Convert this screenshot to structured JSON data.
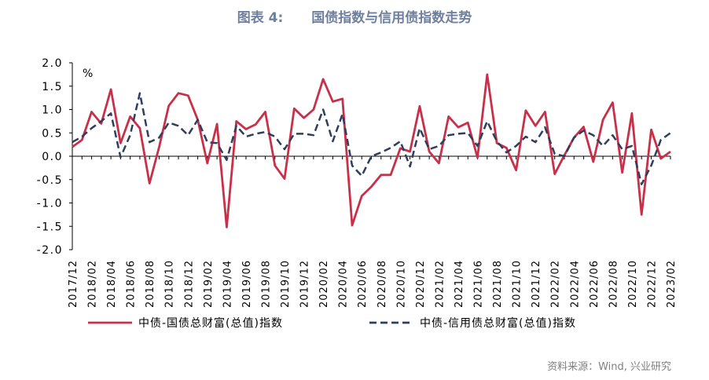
{
  "figure_label": "图表 4:",
  "title": "国债指数与信用债指数走势",
  "source": "资料来源：Wind, 兴业研究",
  "colors": {
    "series1": "#c8304a",
    "series2": "#2f3d5e",
    "axis": "#000000"
  },
  "chart_data": {
    "type": "line",
    "ylabel": "%",
    "ylim": [
      -2.0,
      2.0
    ],
    "yticks": [
      "2.0",
      "1.5",
      "1.0",
      "0.5",
      "0.0",
      "-0.5",
      "-1.0",
      "-1.5",
      "-2.0"
    ],
    "grid": false,
    "legend": "bottom",
    "xtick_labels": [
      "2017/12",
      "2018/02",
      "2018/04",
      "2018/06",
      "2018/08",
      "2018/10",
      "2018/12",
      "2019/02",
      "2019/04",
      "2019/06",
      "2019/08",
      "2019/10",
      "2019/12",
      "2020/02",
      "2020/04",
      "2020/06",
      "2020/08",
      "2020/10",
      "2020/12",
      "2021/02",
      "2021/04",
      "2021/06",
      "2021/08",
      "2021/10",
      "2021/12",
      "2022/02",
      "2022/04",
      "2022/06",
      "2022/08",
      "2022/10",
      "2022/12",
      "2023/02"
    ],
    "x": [
      "2017/12",
      "2018/01",
      "2018/02",
      "2018/03",
      "2018/04",
      "2018/05",
      "2018/06",
      "2018/07",
      "2018/08",
      "2018/09",
      "2018/10",
      "2018/11",
      "2018/12",
      "2019/01",
      "2019/02",
      "2019/03",
      "2019/04",
      "2019/05",
      "2019/06",
      "2019/07",
      "2019/08",
      "2019/09",
      "2019/10",
      "2019/11",
      "2019/12",
      "2020/01",
      "2020/02",
      "2020/03",
      "2020/04",
      "2020/05",
      "2020/06",
      "2020/07",
      "2020/08",
      "2020/09",
      "2020/10",
      "2020/11",
      "2020/12",
      "2021/01",
      "2021/02",
      "2021/03",
      "2021/04",
      "2021/05",
      "2021/06",
      "2021/07",
      "2021/08",
      "2021/09",
      "2021/10",
      "2021/11",
      "2021/12",
      "2022/01",
      "2022/02",
      "2022/03",
      "2022/04",
      "2022/05",
      "2022/06",
      "2022/07",
      "2022/08",
      "2022/09",
      "2022/10",
      "2022/11",
      "2022/12",
      "2023/01",
      "2023/02"
    ],
    "series": [
      {
        "name": "中债-国债总财富(总值)指数",
        "style": "solid",
        "values": [
          0.2,
          0.35,
          0.95,
          0.7,
          1.43,
          0.28,
          0.85,
          0.6,
          -0.58,
          0.2,
          1.08,
          1.35,
          1.3,
          0.78,
          -0.15,
          0.69,
          -1.52,
          0.75,
          0.58,
          0.68,
          0.95,
          -0.2,
          -0.48,
          1.02,
          0.82,
          1.0,
          1.65,
          1.17,
          1.23,
          -1.48,
          -0.85,
          -0.65,
          -0.4,
          -0.4,
          0.17,
          0.1,
          1.07,
          0.1,
          -0.15,
          0.85,
          0.62,
          0.72,
          -0.03,
          1.75,
          0.28,
          0.18,
          -0.3,
          0.98,
          0.65,
          0.95,
          -0.38,
          0.02,
          0.4,
          0.63,
          -0.12,
          0.78,
          1.15,
          -0.35,
          0.92,
          -1.25,
          0.57,
          -0.05,
          0.1
        ]
      },
      {
        "name": "中债-信用债总财富(总值)指数",
        "style": "dashed",
        "values": [
          0.3,
          0.42,
          0.6,
          0.75,
          0.92,
          -0.02,
          0.45,
          1.35,
          0.3,
          0.4,
          0.72,
          0.65,
          0.45,
          0.78,
          0.3,
          0.28,
          -0.08,
          0.65,
          0.42,
          0.48,
          0.52,
          0.42,
          0.15,
          0.48,
          0.48,
          0.45,
          1.0,
          0.32,
          0.9,
          -0.2,
          -0.42,
          0.0,
          0.08,
          0.18,
          0.32,
          -0.22,
          0.6,
          0.15,
          0.22,
          0.45,
          0.48,
          0.5,
          0.22,
          0.75,
          0.32,
          0.08,
          0.22,
          0.42,
          0.3,
          0.62,
          0.05,
          0.0,
          0.4,
          0.55,
          0.45,
          0.22,
          0.45,
          0.15,
          0.22,
          -0.6,
          -0.2,
          0.35,
          0.5
        ]
      }
    ]
  }
}
